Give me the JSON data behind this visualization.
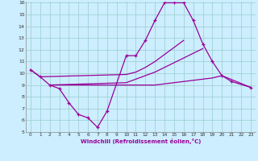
{
  "xlabel": "Windchill (Refroidissement éolien,°C)",
  "x_values": [
    0,
    1,
    2,
    3,
    4,
    5,
    6,
    7,
    8,
    9,
    10,
    11,
    12,
    13,
    14,
    15,
    16,
    17,
    18,
    19,
    20,
    21,
    22,
    23
  ],
  "line_main": [
    10.3,
    9.7,
    9.0,
    8.7,
    7.5,
    6.5,
    6.2,
    5.4,
    6.8,
    null,
    11.5,
    11.5,
    12.8,
    14.5,
    16.0,
    16.0,
    16.0,
    14.5,
    12.5,
    11.0,
    9.8,
    9.3,
    null,
    8.8
  ],
  "line_top": [
    10.3,
    9.7,
    null,
    null,
    null,
    null,
    null,
    null,
    null,
    null,
    9.9,
    10.1,
    10.5,
    11.0,
    11.6,
    12.2,
    12.8,
    null,
    null,
    null,
    null,
    null,
    null,
    null
  ],
  "line_mid": [
    null,
    null,
    9.0,
    null,
    null,
    null,
    null,
    null,
    null,
    null,
    9.2,
    9.5,
    9.8,
    10.1,
    10.5,
    10.9,
    11.3,
    11.7,
    12.1,
    null,
    null,
    null,
    null,
    null
  ],
  "line_bot": [
    null,
    null,
    9.0,
    null,
    null,
    null,
    null,
    null,
    null,
    null,
    9.0,
    9.0,
    9.0,
    9.0,
    9.1,
    9.2,
    9.3,
    9.4,
    9.5,
    9.6,
    9.8,
    null,
    null,
    8.8
  ],
  "line_color": "#990099",
  "bg_color": "#cceeff",
  "grid_color": "#99cccc",
  "ylim": [
    5,
    16
  ],
  "xlim": [
    -0.5,
    23.5
  ],
  "yticks": [
    5,
    6,
    7,
    8,
    9,
    10,
    11,
    12,
    13,
    14,
    15,
    16
  ],
  "xticks": [
    0,
    1,
    2,
    3,
    4,
    5,
    6,
    7,
    8,
    9,
    10,
    11,
    12,
    13,
    14,
    15,
    16,
    17,
    18,
    19,
    20,
    21,
    22,
    23
  ]
}
